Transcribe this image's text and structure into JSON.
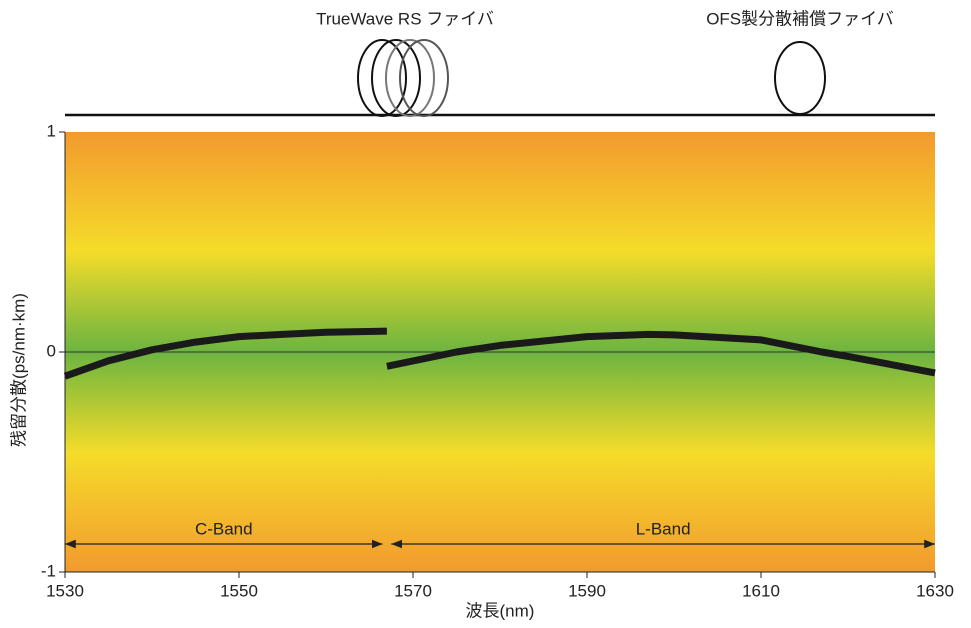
{
  "chart_data": {
    "type": "line",
    "fiber_labels": [
      "TrueWave RS ファイバ",
      "OFS製分散補償ファイバ"
    ],
    "xlabel": "波長(nm)",
    "ylabel": "残留分散(ps/nm·km)",
    "xlim": [
      1530,
      1630
    ],
    "xticks": [
      1530,
      1550,
      1570,
      1590,
      1610,
      1630
    ],
    "ylim": [
      -1,
      1
    ],
    "yticks": [
      -1,
      0,
      1
    ],
    "zero_line": true,
    "series": [
      {
        "color": "#1a1a1a",
        "x": [
          1530,
          1535,
          1540,
          1545,
          1550,
          1555,
          1560,
          1567
        ],
        "values": [
          -0.11,
          -0.04,
          0.01,
          0.045,
          0.07,
          0.08,
          0.09,
          0.095
        ]
      },
      {
        "color": "#1a1a1a",
        "x": [
          1567,
          1575,
          1580,
          1590,
          1597,
          1600,
          1610,
          1617,
          1620,
          1630
        ],
        "values": [
          -0.065,
          0,
          0.03,
          0.07,
          0.08,
          0.078,
          0.055,
          0,
          -0.02,
          -0.095
        ]
      }
    ],
    "bands": [
      {
        "label": "C-Band",
        "range": [
          1530,
          1566.5
        ]
      },
      {
        "label": "L-Band",
        "range": [
          1567.5,
          1630
        ]
      }
    ]
  }
}
